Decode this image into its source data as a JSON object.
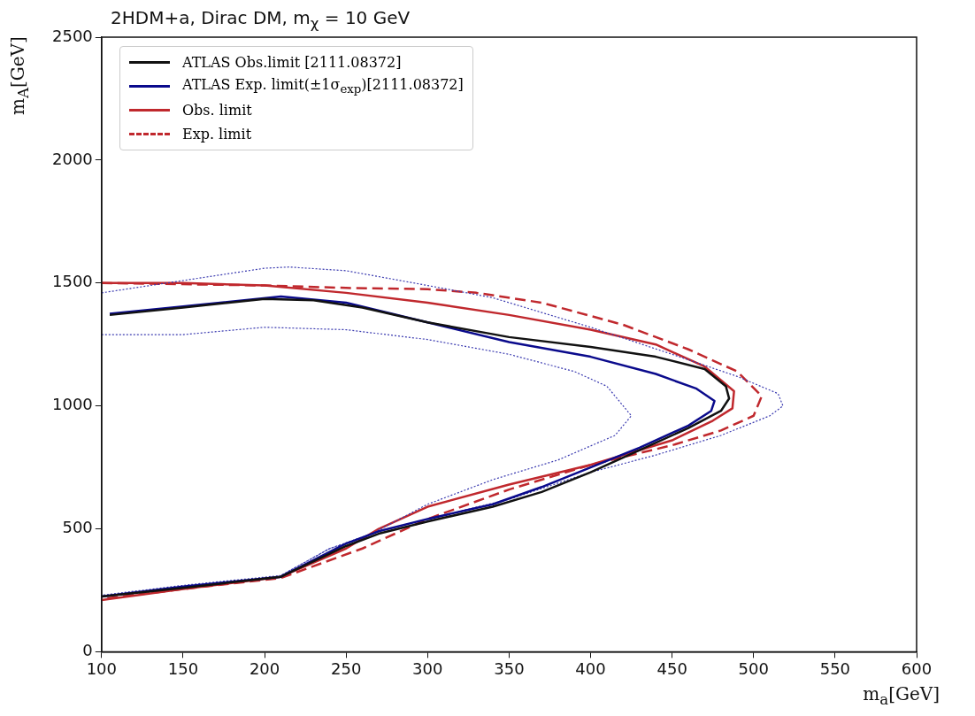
{
  "chart_data": {
    "type": "line",
    "title": "2HDM+a, Dirac DM, m$_{χ}$ = 10 GeV",
    "xlabel": "m$_{a}$[GeV]",
    "ylabel": "m$_{A}$[GeV]",
    "xlim": [
      100,
      600
    ],
    "xticks": [
      100,
      150,
      200,
      250,
      300,
      350,
      400,
      450,
      500,
      550,
      600
    ],
    "ylim": [
      0,
      2500
    ],
    "yticks": [
      0,
      500,
      1000,
      1500,
      2000,
      2500
    ],
    "grid": false,
    "legend": "top left",
    "marker": "none",
    "series": [
      {
        "name": "ATLAS  Obs.limit [2111.08372]",
        "color": "#111111",
        "line_style": "solid",
        "x": [
          105,
          150,
          200,
          230,
          260,
          300,
          350,
          400,
          440,
          470,
          483,
          485,
          480,
          460,
          430,
          400,
          370,
          340,
          300,
          270,
          250,
          210,
          150,
          100
        ],
        "values": [
          1370,
          1400,
          1435,
          1430,
          1400,
          1340,
          1280,
          1240,
          1200,
          1150,
          1080,
          1030,
          980,
          910,
          820,
          730,
          650,
          590,
          530,
          480,
          430,
          305,
          260,
          225
        ]
      },
      {
        "name": "ATLAS  Exp. limit(±1σ$_{exp}$)[2111.08372]",
        "color": "#0a0a8c",
        "line_style": "solid",
        "x": [
          105,
          150,
          210,
          250,
          300,
          350,
          400,
          440,
          465,
          476,
          474,
          460,
          430,
          400,
          370,
          340,
          300,
          270,
          250,
          210,
          150,
          100
        ],
        "values": [
          1375,
          1405,
          1445,
          1420,
          1340,
          1260,
          1200,
          1130,
          1070,
          1020,
          980,
          920,
          830,
          750,
          670,
          600,
          540,
          490,
          440,
          305,
          265,
          225
        ]
      },
      {
        "color": "#3a3ab0",
        "line_style": "dotted",
        "x": [
          100,
          150,
          200,
          215,
          250,
          300,
          340,
          400,
          450,
          490,
          515,
          518,
          510,
          480,
          440,
          400,
          350,
          300,
          270,
          240,
          210,
          150,
          100
        ],
        "values": [
          1460,
          1510,
          1560,
          1565,
          1550,
          1490,
          1440,
          1320,
          1210,
          1120,
          1050,
          1000,
          960,
          880,
          800,
          730,
          620,
          540,
          490,
          420,
          310,
          270,
          230
        ]
      },
      {
        "color": "#3a3ab0",
        "line_style": "dotted",
        "x": [
          100,
          150,
          200,
          250,
          300,
          350,
          390,
          410,
          425,
          415,
          380,
          340,
          300,
          260,
          240,
          210
        ],
        "values": [
          1290,
          1290,
          1320,
          1310,
          1270,
          1210,
          1140,
          1080,
          960,
          880,
          780,
          700,
          600,
          460,
          420,
          310
        ]
      },
      {
        "name": "Obs. limit",
        "color": "#c0282d",
        "line_style": "solid",
        "x": [
          100,
          150,
          200,
          250,
          300,
          350,
          400,
          440,
          470,
          488,
          487,
          475,
          450,
          400,
          350,
          300,
          270,
          250,
          210,
          150,
          100
        ],
        "values": [
          1500,
          1500,
          1490,
          1460,
          1420,
          1370,
          1310,
          1250,
          1160,
          1060,
          990,
          940,
          860,
          760,
          680,
          590,
          500,
          420,
          305,
          255,
          210
        ]
      },
      {
        "name": "Exp. limit",
        "color": "#c0282d",
        "line_style": "dashed",
        "x": [
          100,
          200,
          250,
          300,
          330,
          370,
          420,
          460,
          490,
          505,
          500,
          480,
          450,
          400,
          350,
          300,
          260,
          210,
          150,
          100
        ],
        "values": [
          1500,
          1490,
          1480,
          1475,
          1460,
          1420,
          1330,
          1230,
          1140,
          1040,
          960,
          900,
          840,
          760,
          660,
          540,
          420,
          300,
          255,
          215
        ]
      }
    ]
  }
}
